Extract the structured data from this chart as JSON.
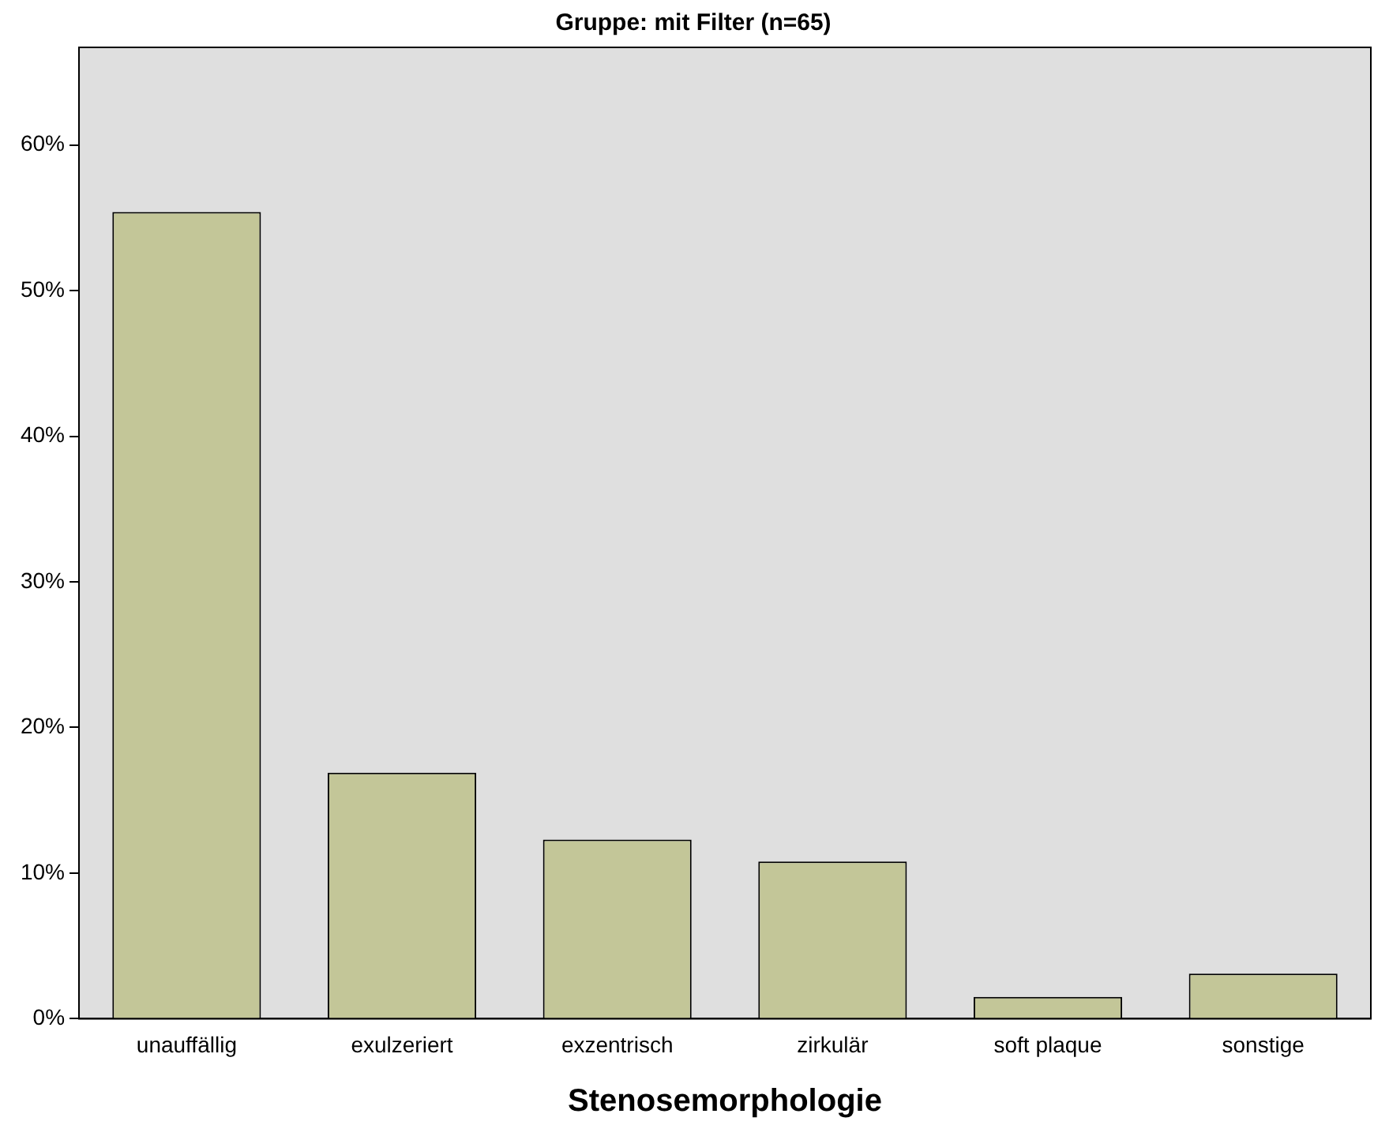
{
  "chart_data": {
    "type": "bar",
    "title": "Gruppe: mit Filter (n=65)",
    "xlabel": "Stenosemorphologie",
    "categories": [
      "unauffällig",
      "exulzeriert",
      "exzentrisch",
      "zirkulär",
      "soft plaque",
      "sonstige"
    ],
    "values": [
      55.4,
      16.9,
      12.3,
      10.8,
      1.5,
      3.1
    ],
    "color": "#c3c698",
    "ylim": [
      0,
      66.7
    ],
    "yticks": [
      {
        "value": 0,
        "label": "0%"
      },
      {
        "value": 10,
        "label": "10%"
      },
      {
        "value": 20,
        "label": "20%"
      },
      {
        "value": 30,
        "label": "30%"
      },
      {
        "value": 40,
        "label": "40%"
      },
      {
        "value": 50,
        "label": "50%"
      },
      {
        "value": 60,
        "label": "60%"
      }
    ],
    "grid": false,
    "legend": false
  }
}
